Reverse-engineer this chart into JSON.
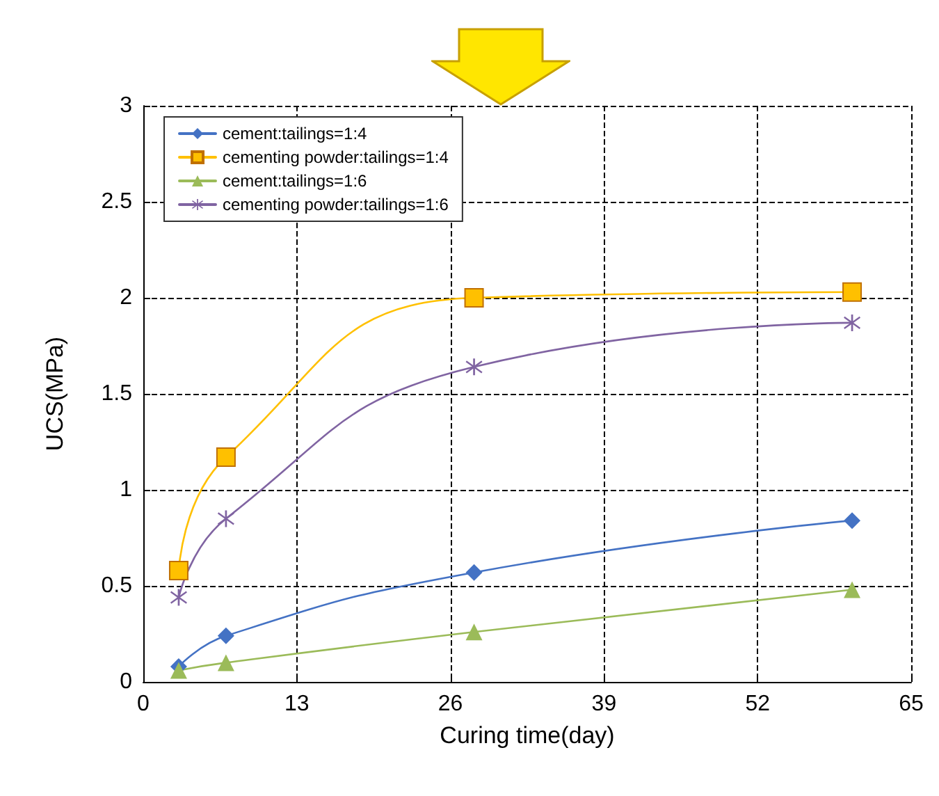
{
  "chart_data": {
    "type": "line",
    "xlabel": "Curing time(day)",
    "ylabel": "UCS(MPa)",
    "x": [
      3,
      7,
      28,
      60
    ],
    "series": [
      {
        "name": "cement:tailings=1:4",
        "color": "#4472c4",
        "marker": "diamond",
        "values": [
          0.08,
          0.24,
          0.57,
          0.84
        ]
      },
      {
        "name": "cementing powder:tailings=1:4",
        "color": "#ffc000",
        "marker": "square",
        "values": [
          0.58,
          1.17,
          2.0,
          2.03
        ]
      },
      {
        "name": "cement:tailings=1:6",
        "color": "#9bbb59",
        "marker": "triangle",
        "values": [
          0.06,
          0.1,
          0.26,
          0.48
        ]
      },
      {
        "name": "cementing powder:tailings=1:6",
        "color": "#8064a2",
        "marker": "cross",
        "values": [
          0.44,
          0.85,
          1.64,
          1.87
        ]
      }
    ],
    "xlim": [
      0,
      65
    ],
    "xticks": [
      0,
      13,
      26,
      39,
      52,
      65
    ],
    "ylim": [
      0,
      3
    ],
    "yticks": [
      0,
      0.5,
      1,
      1.5,
      2,
      2.5,
      3
    ],
    "grid": true,
    "legend": "top left"
  }
}
